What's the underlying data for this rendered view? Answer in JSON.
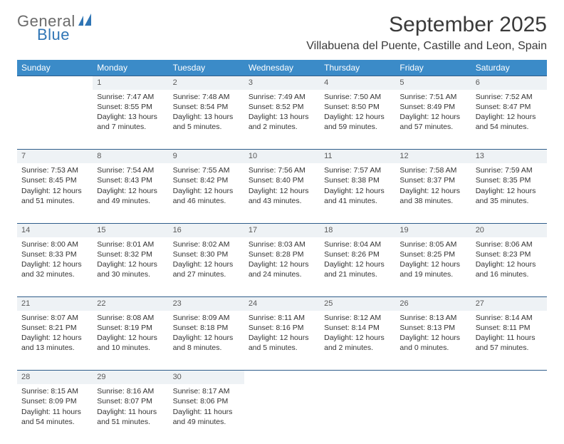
{
  "logo": {
    "text_general": "General",
    "text_blue": "Blue",
    "sail_color": "#2f75b5",
    "general_color": "#6b6b6b"
  },
  "header": {
    "month_title": "September 2025",
    "location": "Villabuena del Puente, Castille and Leon, Spain"
  },
  "styling": {
    "page_bg": "#ffffff",
    "header_bg": "#3b8bc8",
    "header_text": "#ffffff",
    "daynum_bg": "#eef2f5",
    "daynum_border": "#2f5d8a",
    "text_color": "#333333",
    "title_fontsize": 30,
    "location_fontsize": 16,
    "dayheader_fontsize": 12,
    "cell_fontsize": 10.5,
    "columns": 7,
    "rows": 5
  },
  "day_headers": [
    "Sunday",
    "Monday",
    "Tuesday",
    "Wednesday",
    "Thursday",
    "Friday",
    "Saturday"
  ],
  "weeks": [
    [
      null,
      {
        "n": "1",
        "sunrise": "7:47 AM",
        "sunset": "8:55 PM",
        "daylight": "13 hours and 7 minutes."
      },
      {
        "n": "2",
        "sunrise": "7:48 AM",
        "sunset": "8:54 PM",
        "daylight": "13 hours and 5 minutes."
      },
      {
        "n": "3",
        "sunrise": "7:49 AM",
        "sunset": "8:52 PM",
        "daylight": "13 hours and 2 minutes."
      },
      {
        "n": "4",
        "sunrise": "7:50 AM",
        "sunset": "8:50 PM",
        "daylight": "12 hours and 59 minutes."
      },
      {
        "n": "5",
        "sunrise": "7:51 AM",
        "sunset": "8:49 PM",
        "daylight": "12 hours and 57 minutes."
      },
      {
        "n": "6",
        "sunrise": "7:52 AM",
        "sunset": "8:47 PM",
        "daylight": "12 hours and 54 minutes."
      }
    ],
    [
      {
        "n": "7",
        "sunrise": "7:53 AM",
        "sunset": "8:45 PM",
        "daylight": "12 hours and 51 minutes."
      },
      {
        "n": "8",
        "sunrise": "7:54 AM",
        "sunset": "8:43 PM",
        "daylight": "12 hours and 49 minutes."
      },
      {
        "n": "9",
        "sunrise": "7:55 AM",
        "sunset": "8:42 PM",
        "daylight": "12 hours and 46 minutes."
      },
      {
        "n": "10",
        "sunrise": "7:56 AM",
        "sunset": "8:40 PM",
        "daylight": "12 hours and 43 minutes."
      },
      {
        "n": "11",
        "sunrise": "7:57 AM",
        "sunset": "8:38 PM",
        "daylight": "12 hours and 41 minutes."
      },
      {
        "n": "12",
        "sunrise": "7:58 AM",
        "sunset": "8:37 PM",
        "daylight": "12 hours and 38 minutes."
      },
      {
        "n": "13",
        "sunrise": "7:59 AM",
        "sunset": "8:35 PM",
        "daylight": "12 hours and 35 minutes."
      }
    ],
    [
      {
        "n": "14",
        "sunrise": "8:00 AM",
        "sunset": "8:33 PM",
        "daylight": "12 hours and 32 minutes."
      },
      {
        "n": "15",
        "sunrise": "8:01 AM",
        "sunset": "8:32 PM",
        "daylight": "12 hours and 30 minutes."
      },
      {
        "n": "16",
        "sunrise": "8:02 AM",
        "sunset": "8:30 PM",
        "daylight": "12 hours and 27 minutes."
      },
      {
        "n": "17",
        "sunrise": "8:03 AM",
        "sunset": "8:28 PM",
        "daylight": "12 hours and 24 minutes."
      },
      {
        "n": "18",
        "sunrise": "8:04 AM",
        "sunset": "8:26 PM",
        "daylight": "12 hours and 21 minutes."
      },
      {
        "n": "19",
        "sunrise": "8:05 AM",
        "sunset": "8:25 PM",
        "daylight": "12 hours and 19 minutes."
      },
      {
        "n": "20",
        "sunrise": "8:06 AM",
        "sunset": "8:23 PM",
        "daylight": "12 hours and 16 minutes."
      }
    ],
    [
      {
        "n": "21",
        "sunrise": "8:07 AM",
        "sunset": "8:21 PM",
        "daylight": "12 hours and 13 minutes."
      },
      {
        "n": "22",
        "sunrise": "8:08 AM",
        "sunset": "8:19 PM",
        "daylight": "12 hours and 10 minutes."
      },
      {
        "n": "23",
        "sunrise": "8:09 AM",
        "sunset": "8:18 PM",
        "daylight": "12 hours and 8 minutes."
      },
      {
        "n": "24",
        "sunrise": "8:11 AM",
        "sunset": "8:16 PM",
        "daylight": "12 hours and 5 minutes."
      },
      {
        "n": "25",
        "sunrise": "8:12 AM",
        "sunset": "8:14 PM",
        "daylight": "12 hours and 2 minutes."
      },
      {
        "n": "26",
        "sunrise": "8:13 AM",
        "sunset": "8:13 PM",
        "daylight": "12 hours and 0 minutes."
      },
      {
        "n": "27",
        "sunrise": "8:14 AM",
        "sunset": "8:11 PM",
        "daylight": "11 hours and 57 minutes."
      }
    ],
    [
      {
        "n": "28",
        "sunrise": "8:15 AM",
        "sunset": "8:09 PM",
        "daylight": "11 hours and 54 minutes."
      },
      {
        "n": "29",
        "sunrise": "8:16 AM",
        "sunset": "8:07 PM",
        "daylight": "11 hours and 51 minutes."
      },
      {
        "n": "30",
        "sunrise": "8:17 AM",
        "sunset": "8:06 PM",
        "daylight": "11 hours and 49 minutes."
      },
      null,
      null,
      null,
      null
    ]
  ],
  "labels": {
    "sunrise": "Sunrise:",
    "sunset": "Sunset:",
    "daylight": "Daylight:"
  }
}
